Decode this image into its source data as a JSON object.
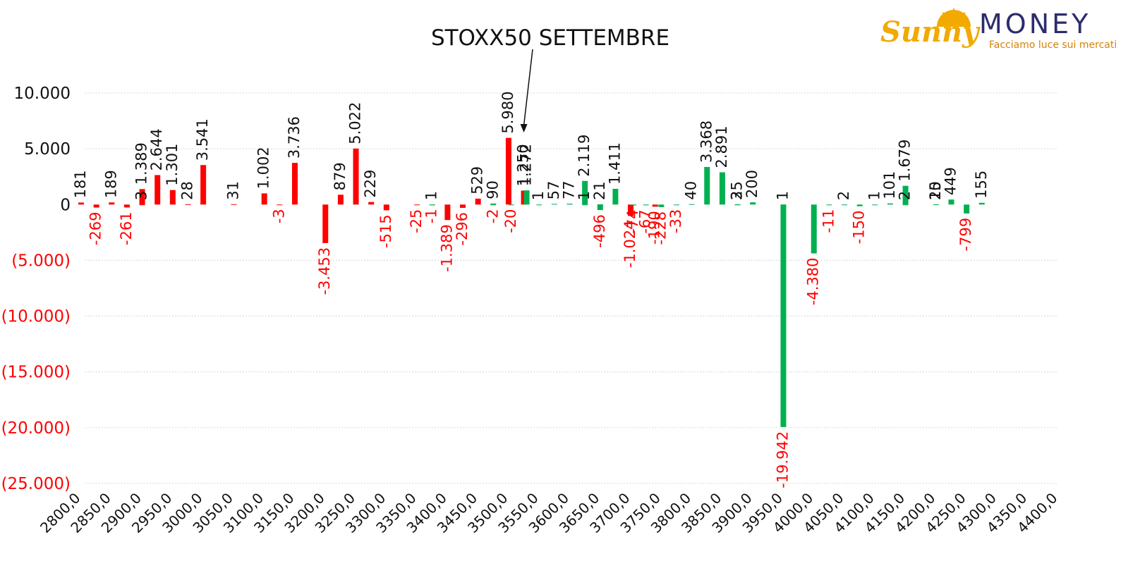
{
  "logo": {
    "brand": "Sunny",
    "name": "MONEY",
    "tagline": "Facciamo luce sui mercati"
  },
  "colors": {
    "put": "#ff0000",
    "call": "#00b050",
    "negative_label": "#ff0000",
    "positive_label": "#111111",
    "grid": "#d9d9d9"
  },
  "chart_data": {
    "type": "bar",
    "title": "STOXX50 SETTEMBRE",
    "annotation": {
      "type": "arrow",
      "target_x": 3525
    },
    "ylim": [
      -25000,
      10000
    ],
    "y_ticks": [
      10000,
      5000,
      0,
      -5000,
      -10000,
      -15000,
      -20000,
      -25000
    ],
    "y_tick_labels": [
      "10.000",
      "5.000",
      "0",
      "(5.000)",
      "(10.000)",
      "(15.000)",
      "(20.000)",
      "(25.000)"
    ],
    "xlim": [
      2800,
      4400
    ],
    "x_ticks": [
      2800,
      2850,
      2900,
      2950,
      3000,
      3050,
      3100,
      3150,
      3200,
      3250,
      3300,
      3350,
      3400,
      3450,
      3500,
      3550,
      3600,
      3650,
      3700,
      3750,
      3800,
      3850,
      3900,
      3950,
      4000,
      4050,
      4100,
      4150,
      4200,
      4250,
      4300,
      4350,
      4400
    ],
    "x_tick_labels": [
      "2800,0",
      "2850,0",
      "2900,0",
      "2950,0",
      "3000,0",
      "3050,0",
      "3100,0",
      "3150,0",
      "3200,0",
      "3250,0",
      "3300,0",
      "3350,0",
      "3400,0",
      "3450,0",
      "3500,0",
      "3550,0",
      "3600,0",
      "3650,0",
      "3700,0",
      "3750,0",
      "3800,0",
      "3850,0",
      "3900,0",
      "3950,0",
      "4000,0",
      "4050,0",
      "4100,0",
      "4150,0",
      "4200,0",
      "4250,0",
      "4300,0",
      "4350,0",
      "4400,0"
    ],
    "bars": [
      {
        "x": 2800,
        "value": 181,
        "label": "181",
        "type": "put"
      },
      {
        "x": 2825,
        "value": -269,
        "label": "-269",
        "type": "put"
      },
      {
        "x": 2850,
        "value": 189,
        "label": "189",
        "type": "put"
      },
      {
        "x": 2875,
        "value": -261,
        "label": "-261",
        "type": "put"
      },
      {
        "x": 2900,
        "value": 3,
        "label": "3",
        "type": "put"
      },
      {
        "x": 2900,
        "value": 1389,
        "label": "1.389",
        "type": "put"
      },
      {
        "x": 2925,
        "value": 2644,
        "label": "2.644",
        "type": "put"
      },
      {
        "x": 2950,
        "value": 1301,
        "label": "1.301",
        "type": "put"
      },
      {
        "x": 2975,
        "value": 28,
        "label": "28",
        "type": "put"
      },
      {
        "x": 3000,
        "value": 3541,
        "label": "3.541",
        "type": "put"
      },
      {
        "x": 3050,
        "value": 31,
        "label": "31",
        "type": "put"
      },
      {
        "x": 3100,
        "value": 1002,
        "label": "1.002",
        "type": "put"
      },
      {
        "x": 3125,
        "value": -3,
        "label": "-3",
        "type": "put"
      },
      {
        "x": 3150,
        "value": 3736,
        "label": "3.736",
        "type": "put"
      },
      {
        "x": 3200,
        "value": -3453,
        "label": "-3.453",
        "type": "put"
      },
      {
        "x": 3225,
        "value": 879,
        "label": "879",
        "type": "put"
      },
      {
        "x": 3250,
        "value": 5022,
        "label": "5.022",
        "type": "put"
      },
      {
        "x": 3275,
        "value": 229,
        "label": "229",
        "type": "put"
      },
      {
        "x": 3300,
        "value": -515,
        "label": "-515",
        "type": "put"
      },
      {
        "x": 3350,
        "value": -25,
        "label": "-25",
        "type": "put"
      },
      {
        "x": 3375,
        "value": 1,
        "label": "1",
        "type": "call"
      },
      {
        "x": 3375,
        "value": -1,
        "label": "-1",
        "type": "call"
      },
      {
        "x": 3400,
        "value": -1389,
        "label": "-1.389",
        "type": "put"
      },
      {
        "x": 3425,
        "value": -296,
        "label": "-296",
        "type": "put"
      },
      {
        "x": 3450,
        "value": 529,
        "label": "529",
        "type": "put"
      },
      {
        "x": 3475,
        "value": 90,
        "label": "90",
        "type": "call"
      },
      {
        "x": 3475,
        "value": -2,
        "label": "-2",
        "type": "call"
      },
      {
        "x": 3500,
        "value": 5980,
        "label": "5.980",
        "type": "put"
      },
      {
        "x": 3500,
        "value": -20,
        "label": "-20",
        "type": "call"
      },
      {
        "x": 3525,
        "value": 1250,
        "label": "1.250",
        "type": "put"
      },
      {
        "x": 3525,
        "value": 1272,
        "label": "1.272",
        "type": "call"
      },
      {
        "x": 3550,
        "value": 1,
        "label": "1",
        "type": "call"
      },
      {
        "x": 3575,
        "value": 57,
        "label": "57",
        "type": "call"
      },
      {
        "x": 3600,
        "value": 77,
        "label": "77",
        "type": "call"
      },
      {
        "x": 3625,
        "value": 1,
        "label": "1",
        "type": "call"
      },
      {
        "x": 3625,
        "value": 2119,
        "label": "2.119",
        "type": "call"
      },
      {
        "x": 3650,
        "value": 21,
        "label": "21",
        "type": "call"
      },
      {
        "x": 3650,
        "value": -496,
        "label": "-496",
        "type": "call"
      },
      {
        "x": 3675,
        "value": 1411,
        "label": "1.411",
        "type": "call"
      },
      {
        "x": 3700,
        "value": -1024,
        "label": "-1.024",
        "type": "put"
      },
      {
        "x": 3700,
        "value": -74,
        "label": "-74",
        "type": "call"
      },
      {
        "x": 3725,
        "value": -67,
        "label": "-67",
        "type": "call"
      },
      {
        "x": 3740,
        "value": -190,
        "label": "-190",
        "type": "put"
      },
      {
        "x": 3750,
        "value": -228,
        "label": "-228",
        "type": "call"
      },
      {
        "x": 3775,
        "value": -33,
        "label": "-33",
        "type": "call"
      },
      {
        "x": 3800,
        "value": 40,
        "label": "40",
        "type": "call"
      },
      {
        "x": 3825,
        "value": 3368,
        "label": "3.368",
        "type": "call"
      },
      {
        "x": 3850,
        "value": 2891,
        "label": "2.891",
        "type": "call"
      },
      {
        "x": 3875,
        "value": 25,
        "label": "25",
        "type": "call"
      },
      {
        "x": 3875,
        "value": 3,
        "label": "3",
        "type": "call"
      },
      {
        "x": 3900,
        "value": 200,
        "label": "200",
        "type": "call"
      },
      {
        "x": 3950,
        "value": 1,
        "label": "1",
        "type": "call"
      },
      {
        "x": 3950,
        "value": -19942,
        "label": "-19.942",
        "type": "call"
      },
      {
        "x": 4000,
        "value": -4380,
        "label": "-4.380",
        "type": "call"
      },
      {
        "x": 4025,
        "value": -11,
        "label": "-11",
        "type": "call"
      },
      {
        "x": 4050,
        "value": 2,
        "label": "2",
        "type": "call"
      },
      {
        "x": 4075,
        "value": -150,
        "label": "-150",
        "type": "call"
      },
      {
        "x": 4100,
        "value": 1,
        "label": "1",
        "type": "call"
      },
      {
        "x": 4125,
        "value": 101,
        "label": "101",
        "type": "call"
      },
      {
        "x": 4150,
        "value": 1679,
        "label": "1.679",
        "type": "call"
      },
      {
        "x": 4150,
        "value": 2,
        "label": "2",
        "type": "call"
      },
      {
        "x": 4200,
        "value": 20,
        "label": "20",
        "type": "call"
      },
      {
        "x": 4200,
        "value": 15,
        "label": "15",
        "type": "call"
      },
      {
        "x": 4225,
        "value": 449,
        "label": "449",
        "type": "call"
      },
      {
        "x": 4250,
        "value": -799,
        "label": "-799",
        "type": "call"
      },
      {
        "x": 4275,
        "value": 155,
        "label": "155",
        "type": "call"
      }
    ]
  }
}
